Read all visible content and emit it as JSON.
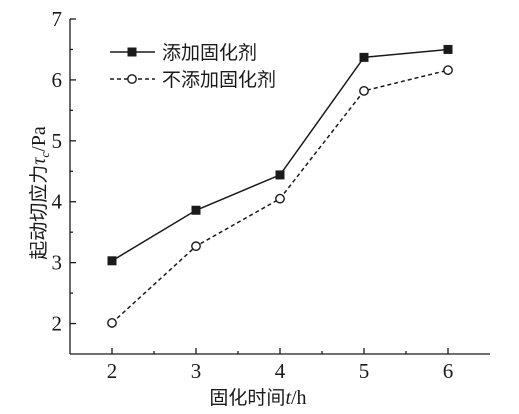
{
  "chart_data": {
    "type": "line",
    "x": [
      2,
      3,
      4,
      5,
      6
    ],
    "xlim": [
      1.5,
      6.5
    ],
    "ylim": [
      1.5,
      7
    ],
    "xticks": [
      "2",
      "3",
      "4",
      "5",
      "6"
    ],
    "yticks": [
      "2",
      "3",
      "4",
      "5",
      "6",
      "7"
    ],
    "xlabel_main": "固化时间",
    "xlabel_var": "t",
    "xlabel_unit": "/h",
    "ylabel_main": "起动切应力",
    "ylabel_var": "τ",
    "ylabel_sub": "c",
    "ylabel_unit": "/Pa",
    "grid": false,
    "legend_position": "top-left",
    "series": [
      {
        "name": "添加固化剂",
        "values": [
          3.03,
          3.86,
          4.44,
          6.37,
          6.5
        ],
        "marker": "filled-square",
        "line_style": "solid",
        "color": "#1a1a1a"
      },
      {
        "name": "不添加固化剂",
        "values": [
          2.01,
          3.27,
          4.05,
          5.82,
          6.16
        ],
        "marker": "open-circle",
        "line_style": "dashed",
        "color": "#1a1a1a"
      }
    ]
  }
}
